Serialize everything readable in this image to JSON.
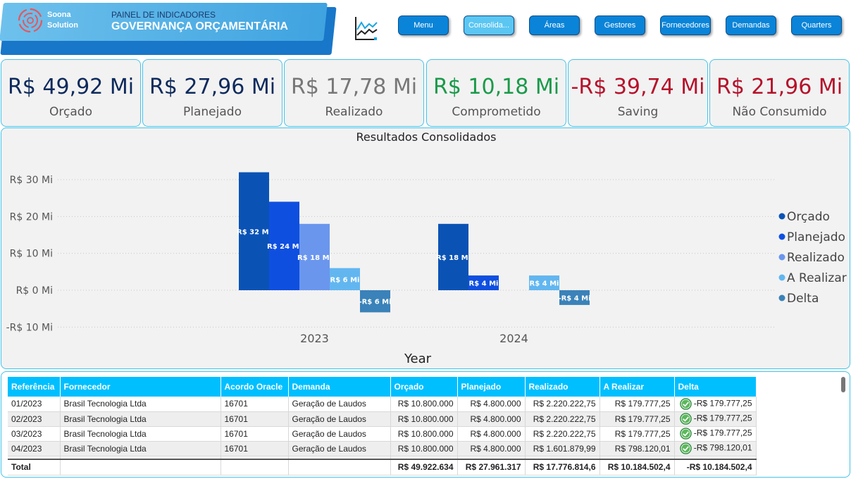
{
  "header": {
    "logo_line1": "Soona",
    "logo_line2": "Solution",
    "subtitle": "PAINEL DE INDICADORES",
    "title": "GOVERNANÇA ORÇAMENTÁRIA",
    "icon": "line-chart-icon"
  },
  "nav": [
    {
      "label": "Menu",
      "active": false
    },
    {
      "label": "Consolida...",
      "active": true
    },
    {
      "label": "Áreas",
      "active": false
    },
    {
      "label": "Gestores",
      "active": false
    },
    {
      "label": "Fornecedores",
      "active": false
    },
    {
      "label": "Demandas",
      "active": false
    },
    {
      "label": "Quarters",
      "active": false
    }
  ],
  "kpis": [
    {
      "value": "R$ 49,92 Mi",
      "label": "Orçado",
      "color": "#0d2a5c"
    },
    {
      "value": "R$ 27,96 Mi",
      "label": "Planejado",
      "color": "#0d2a5c"
    },
    {
      "value": "R$ 17,78 Mi",
      "label": "Realizado",
      "color": "#777777"
    },
    {
      "value": "R$ 10,18 Mi",
      "label": "Comprometido",
      "color": "#1a9a4a"
    },
    {
      "value": "-R$ 39,74 Mi",
      "label": "Saving",
      "color": "#b5122b"
    },
    {
      "value": "R$ 21,96 Mi",
      "label": "Não Consumido",
      "color": "#b5122b"
    }
  ],
  "chart_data": {
    "type": "bar",
    "title": "Resultados Consolidados",
    "xlabel": "Year",
    "ylabel": "",
    "categories": [
      "2023",
      "2024"
    ],
    "y_ticks": [
      "R$ 30 Mi",
      "R$ 20 Mi",
      "R$ 10 Mi",
      "R$ 0 Mi",
      "-R$ 10 Mi"
    ],
    "y_tick_values": [
      30,
      20,
      10,
      0,
      -10
    ],
    "ylim": [
      -10,
      32
    ],
    "grid": true,
    "legend_position": "right",
    "series": [
      {
        "name": "Orçado",
        "color": "#0a53b5",
        "values": [
          32,
          18
        ],
        "labels": [
          "R$ 32 Mi",
          "R$ 18 Mi"
        ]
      },
      {
        "name": "Planejado",
        "color": "#0f4fe0",
        "values": [
          24,
          4
        ],
        "labels": [
          "R$ 24 Mi",
          "R$ 4 Mi"
        ]
      },
      {
        "name": "Realizado",
        "color": "#6a96ee",
        "values": [
          18,
          null
        ],
        "labels": [
          "R$ 18 Mi",
          ""
        ]
      },
      {
        "name": "A Realizar",
        "color": "#62b6f0",
        "values": [
          6,
          4
        ],
        "labels": [
          "R$ 6 Mi",
          "R$ 4 Mi"
        ]
      },
      {
        "name": "Delta",
        "color": "#3a82b9",
        "values": [
          -6,
          -4
        ],
        "labels": [
          "-R$ 6 Mi",
          "-R$ 4 Mi"
        ]
      }
    ]
  },
  "table": {
    "columns": [
      "Referência",
      "Fornecedor",
      "Acordo Oracle",
      "Demanda",
      "Orçado",
      "Planejado",
      "Realizado",
      "A Realizar",
      "Delta"
    ],
    "rows": [
      [
        "01/2023",
        "Brasil Tecnologia Ltda",
        "16701",
        "Geração de Laudos",
        "R$ 10.800.000",
        "R$ 4.800.000",
        "R$ 2.220.222,75",
        "R$ 179.777,25",
        "-R$ 179.777,25"
      ],
      [
        "02/2023",
        "Brasil Tecnologia Ltda",
        "16701",
        "Geração de Laudos",
        "R$ 10.800.000",
        "R$ 4.800.000",
        "R$ 2.220.222,75",
        "R$ 179.777,25",
        "-R$ 179.777,25"
      ],
      [
        "03/2023",
        "Brasil Tecnologia Ltda",
        "16701",
        "Geração de Laudos",
        "R$ 10.800.000",
        "R$ 4.800.000",
        "R$ 2.220.222,75",
        "R$ 179.777,25",
        "-R$ 179.777,25"
      ],
      [
        "04/2023",
        "Brasil Tecnologia Ltda",
        "16701",
        "Geração de Laudos",
        "R$ 10.800.000",
        "R$ 4.800.000",
        "R$ 1.601.879,99",
        "R$ 798.120,01",
        "-R$ 798.120,01"
      ]
    ],
    "total": [
      "Total",
      "",
      "",
      "",
      "R$ 49.922.634",
      "R$ 27.961.317",
      "R$ 17.776.814,6",
      "R$ 10.184.502,4",
      "-R$ 10.184.502,4"
    ]
  }
}
